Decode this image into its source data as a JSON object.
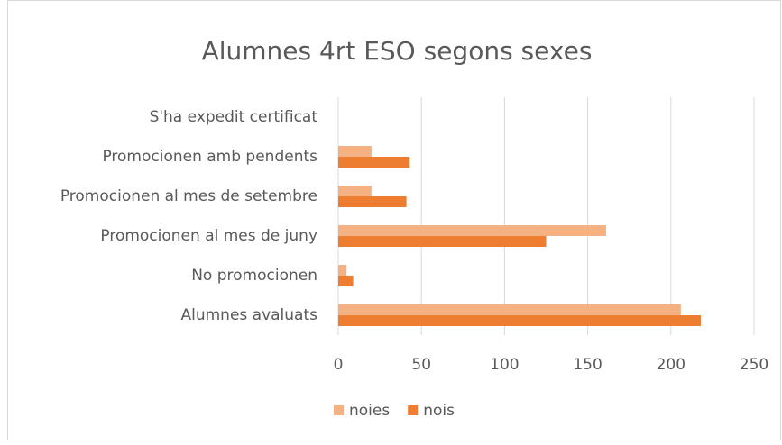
{
  "chart_data": {
    "type": "hbar",
    "title": "Alumnes 4rt ESO segons sexes",
    "categories": [
      "S'ha expedit certificat",
      "Promocionen amb pendents",
      "Promocionen al mes de setembre",
      "Promocionen al mes de juny",
      "No promocionen",
      "Alumnes avaluats"
    ],
    "series": [
      {
        "name": "noies",
        "color": "#f4b183",
        "values": [
          0,
          20,
          20,
          161,
          5,
          206
        ]
      },
      {
        "name": "nois",
        "color": "#ed7d31",
        "values": [
          0,
          43,
          41,
          125,
          9,
          218
        ]
      }
    ],
    "xlim": [
      0,
      250
    ],
    "xticks": [
      0,
      50,
      100,
      150,
      200,
      250
    ],
    "grid": true,
    "legend": "bottom"
  }
}
